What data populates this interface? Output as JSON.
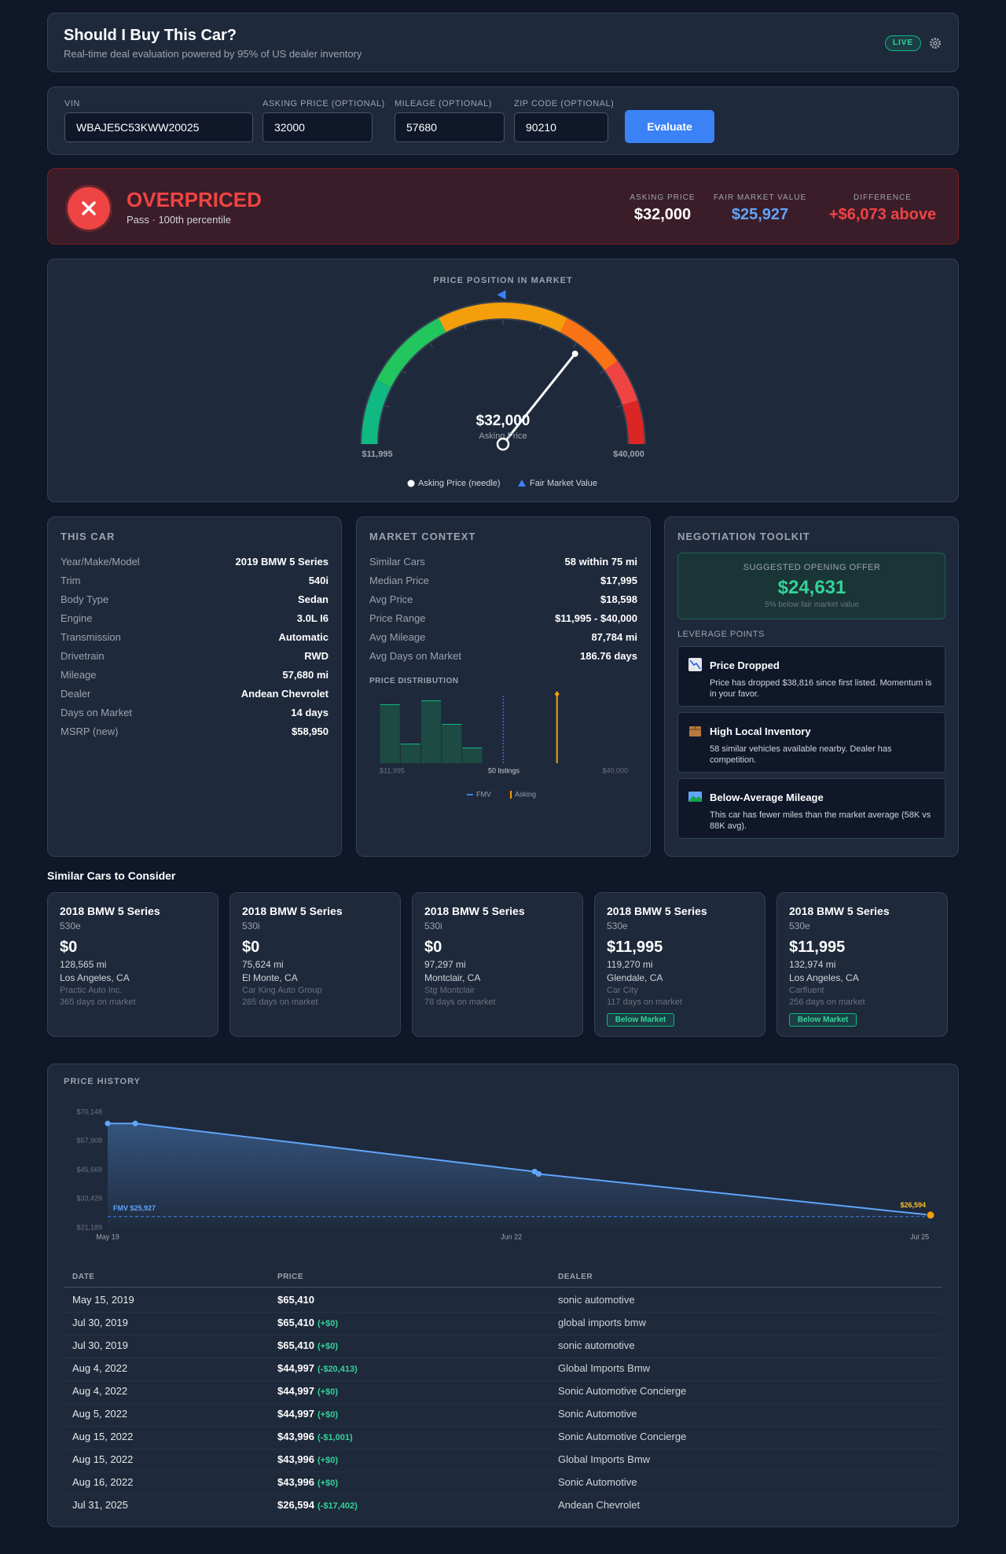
{
  "header": {
    "title": "Should I Buy This Car?",
    "subtitle": "Real-time deal evaluation powered by 95% of US dealer inventory",
    "badge": "LIVE"
  },
  "form": {
    "fields": [
      {
        "label": "VIN",
        "value": "WBAJE5C53KWW20025"
      },
      {
        "label": "ASKING PRICE (OPTIONAL)",
        "value": "32000"
      },
      {
        "label": "MILEAGE (OPTIONAL)",
        "value": "57680"
      },
      {
        "label": "ZIP CODE (OPTIONAL)",
        "value": "90210"
      }
    ],
    "button": "Evaluate"
  },
  "verdict": {
    "title": "OVERPRICED",
    "subtitle": "Pass · 100th percentile",
    "stats": [
      {
        "label": "ASKING PRICE",
        "value": "$32,000"
      },
      {
        "label": "FAIR MARKET VALUE",
        "value": "$25,927"
      },
      {
        "label": "DIFFERENCE",
        "value": "+$6,073 above"
      }
    ]
  },
  "gauge": {
    "type": "gauge",
    "title": "PRICE POSITION IN MARKET",
    "xlim": [
      11995,
      40000
    ],
    "xticks": [
      {
        "value": 11995,
        "label": "$11,995"
      },
      {
        "value": 40000,
        "label": "$40,000"
      }
    ],
    "needle": 32000,
    "needle_label": "$32,000",
    "needle_caption": "Asking Price",
    "marker": 25927,
    "marker_color": "#3b82f6",
    "legend": [
      "Asking Price (needle)",
      "Fair Market Value"
    ]
  },
  "this_car": {
    "title": "THIS CAR",
    "rows": [
      [
        "Year/Make/Model",
        "2019 BMW 5 Series"
      ],
      [
        "Trim",
        "540i"
      ],
      [
        "Body Type",
        "Sedan"
      ],
      [
        "Engine",
        "3.0L I6"
      ],
      [
        "Transmission",
        "Automatic"
      ],
      [
        "Drivetrain",
        "RWD"
      ],
      [
        "Mileage",
        "57,680 mi"
      ],
      [
        "Dealer",
        "Andean Chevrolet"
      ],
      [
        "Days on Market",
        "14 days"
      ],
      [
        "MSRP (new)",
        "$58,950"
      ]
    ]
  },
  "market": {
    "title": "MARKET CONTEXT",
    "rows": [
      [
        "Similar Cars",
        "58 within 75 mi"
      ],
      [
        "Median Price",
        "$17,995"
      ],
      [
        "Avg Price",
        "$18,598"
      ],
      [
        "Price Range",
        "$11,995 - $40,000"
      ],
      [
        "Avg Mileage",
        "87,784 mi"
      ],
      [
        "Avg Days on Market",
        "186.76 days"
      ]
    ],
    "distribution": {
      "type": "histogram",
      "title": "PRICE DISTRIBUTION",
      "bins": [
        11995,
        14320,
        16640,
        18960,
        21280,
        23600
      ],
      "counts": [
        15,
        5,
        16,
        10,
        4
      ],
      "color": "#1d4a43",
      "xlim": [
        11995,
        40000
      ],
      "xticks": [
        {
          "value": 11995,
          "label": "$11,995"
        },
        {
          "value": 40000,
          "label": "$40,000"
        }
      ],
      "caption": "50 listings",
      "fmv": 25927,
      "asking": 32000,
      "fmv_color": "#3b82f6",
      "asking_color": "#f59e0b",
      "legend": [
        "FMV",
        "Asking"
      ]
    }
  },
  "negotiation": {
    "title": "NEGOTIATION TOOLKIT",
    "offer": {
      "label": "SUGGESTED OPENING OFFER",
      "value": "$24,631",
      "note": "5% below fair market value"
    },
    "leverage_title": "LEVERAGE POINTS",
    "leverage": [
      {
        "title": "Price Dropped",
        "text": "Price has dropped $38,816 since first listed. Momentum is in your favor."
      },
      {
        "title": "High Local Inventory",
        "text": "58 similar vehicles available nearby. Dealer has competition."
      },
      {
        "title": "Below-Average Mileage",
        "text": "This car has fewer miles than the market average (58K vs 88K avg)."
      }
    ]
  },
  "similar": {
    "title": "Similar Cars to Consider",
    "cars": [
      {
        "name": "2018 BMW 5 Series",
        "trim": "530e",
        "price": "$0",
        "mileage": "128,565 mi",
        "location": "Los Angeles, CA",
        "dealer": "Practic Auto Inc.",
        "days": "365 days on market"
      },
      {
        "name": "2018 BMW 5 Series",
        "trim": "530i",
        "price": "$0",
        "mileage": "75,624 mi",
        "location": "El Monte, CA",
        "dealer": "Car King Auto Group",
        "days": "285 days on market"
      },
      {
        "name": "2018 BMW 5 Series",
        "trim": "530i",
        "price": "$0",
        "mileage": "97,297 mi",
        "location": "Montclair, CA",
        "dealer": "Stg Montclair",
        "days": "78 days on market"
      },
      {
        "name": "2018 BMW 5 Series",
        "trim": "530e",
        "price": "$11,995",
        "mileage": "119,270 mi",
        "location": "Glendale, CA",
        "dealer": "Car City",
        "days": "117 days on market",
        "badge": "Below Market"
      },
      {
        "name": "2018 BMW 5 Series",
        "trim": "530e",
        "price": "$11,995",
        "mileage": "132,974 mi",
        "location": "Los Angeles, CA",
        "dealer": "Carfluent",
        "days": "256 days on market",
        "badge": "Below Market"
      }
    ]
  },
  "price_history": {
    "title": "PRICE HISTORY",
    "chart": {
      "type": "line",
      "x": [
        "2019-05-15",
        "2019-07-30",
        "2019-07-30",
        "2022-08-04",
        "2022-08-04",
        "2022-08-05",
        "2022-08-15",
        "2022-08-15",
        "2022-08-16",
        "2025-07-31"
      ],
      "values": [
        65410,
        65410,
        65410,
        44997,
        44997,
        44997,
        43996,
        43996,
        43996,
        26594
      ],
      "color": "#60a5fa",
      "ylim": [
        21189,
        70148
      ],
      "yticks": [
        {
          "value": 21189,
          "label": "$21,189"
        },
        {
          "value": 33429,
          "label": "$33,429"
        },
        {
          "value": 45669,
          "label": "$45,669"
        },
        {
          "value": 57908,
          "label": "$57,908"
        },
        {
          "value": 70148,
          "label": "$70,148"
        }
      ],
      "xticks": [
        {
          "value": "2019-05",
          "label": "May 19"
        },
        {
          "value": "2022-06",
          "label": "Jun 22"
        },
        {
          "value": "2025-07",
          "label": "Jul 25"
        }
      ],
      "fmv": 25927,
      "fmv_label": "FMV $25,927",
      "end_label": "$26,594"
    },
    "table": {
      "columns": [
        "DATE",
        "PRICE",
        "DEALER"
      ],
      "rows": [
        {
          "date": "May 15, 2019",
          "price": "$65,410",
          "dealer": "sonic automotive"
        },
        {
          "date": "Jul 30, 2019",
          "price": "$65,410",
          "change": "(+$0)",
          "dealer": "global imports bmw"
        },
        {
          "date": "Jul 30, 2019",
          "price": "$65,410",
          "change": "(+$0)",
          "dealer": "sonic automotive"
        },
        {
          "date": "Aug 4, 2022",
          "price": "$44,997",
          "change": "(-$20,413)",
          "dealer": "Global Imports Bmw"
        },
        {
          "date": "Aug 4, 2022",
          "price": "$44,997",
          "change": "(+$0)",
          "dealer": "Sonic Automotive Concierge"
        },
        {
          "date": "Aug 5, 2022",
          "price": "$44,997",
          "change": "(+$0)",
          "dealer": "Sonic Automotive"
        },
        {
          "date": "Aug 15, 2022",
          "price": "$43,996",
          "change": "(-$1,001)",
          "dealer": "Sonic Automotive Concierge"
        },
        {
          "date": "Aug 15, 2022",
          "price": "$43,996",
          "change": "(+$0)",
          "dealer": "Global Imports Bmw"
        },
        {
          "date": "Aug 16, 2022",
          "price": "$43,996",
          "change": "(+$0)",
          "dealer": "Sonic Automotive"
        },
        {
          "date": "Jul 31, 2025",
          "price": "$26,594",
          "change": "(-$17,402)",
          "dealer": "Andean Chevrolet"
        }
      ]
    }
  }
}
